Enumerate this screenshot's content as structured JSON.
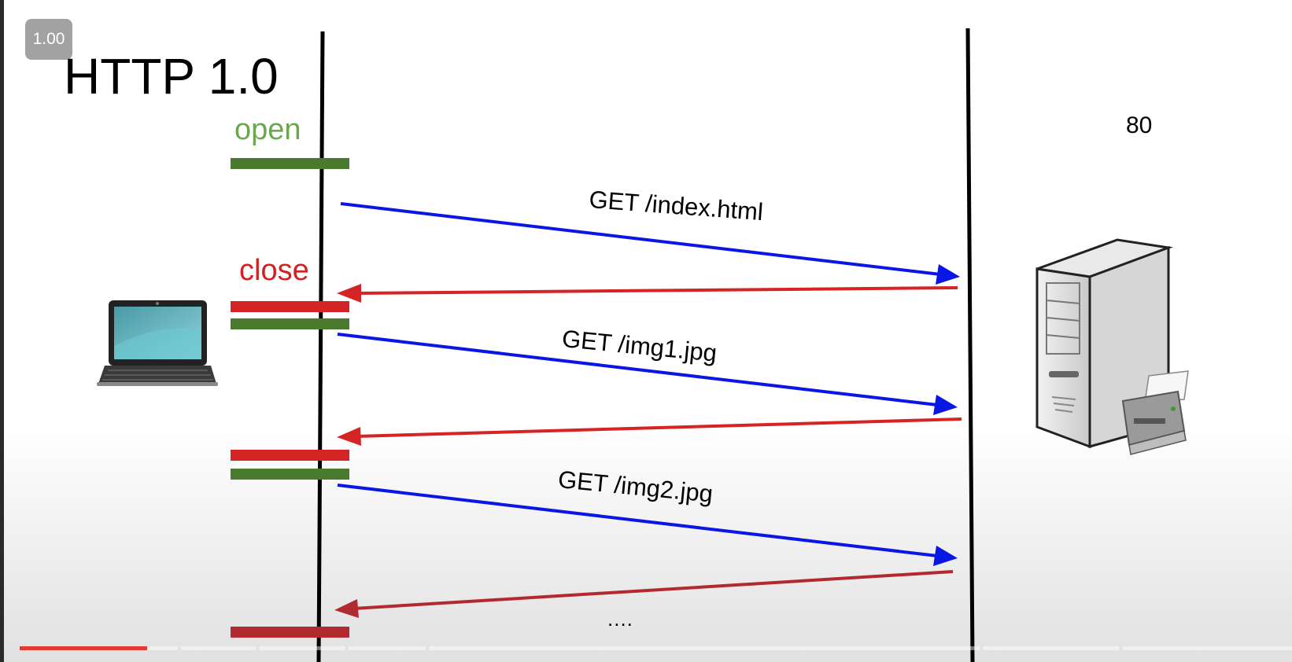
{
  "player": {
    "speed_label": "1.00",
    "progress_fraction": 0.1
  },
  "diagram": {
    "title": "HTTP 1.0",
    "open_label": "open",
    "close_label": "close",
    "server_port": "80",
    "requests": [
      "GET /index.html",
      "GET /img1.jpg",
      "GET /img2.jpg"
    ],
    "continuation": "....",
    "colors": {
      "request": "#0a16e6",
      "response": "#d42424",
      "open": "#4a7a2e",
      "close": "#d42424"
    }
  },
  "icons": {
    "client": "laptop-icon",
    "server": "server-tower-icon",
    "printer": "printer-icon"
  }
}
